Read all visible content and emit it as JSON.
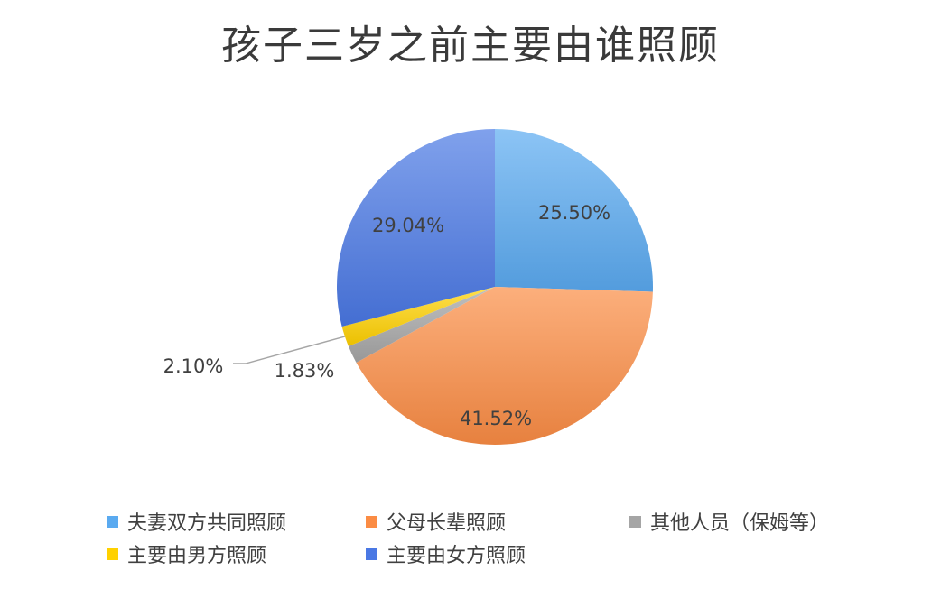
{
  "chart_data": {
    "type": "pie",
    "title": "孩子三岁之前主要由谁照顾",
    "slices": [
      {
        "name": "夫妻双方共同照顾",
        "value": 25.5,
        "label": "25.50%",
        "color": "#5aaaf0"
      },
      {
        "name": "父母长辈照顾",
        "value": 41.52,
        "label": "41.52%",
        "color": "#fb8c44"
      },
      {
        "name": "其他人员（保姆等）",
        "value": 1.83,
        "label": "1.83%",
        "color": "#a5a5a5"
      },
      {
        "name": "主要由男方照顾",
        "value": 2.1,
        "label": "2.10%",
        "color": "#ffd100"
      },
      {
        "name": "主要由女方照顾",
        "value": 29.04,
        "label": "29.04%",
        "color": "#4a78e4"
      }
    ],
    "legend_position": "bottom"
  }
}
